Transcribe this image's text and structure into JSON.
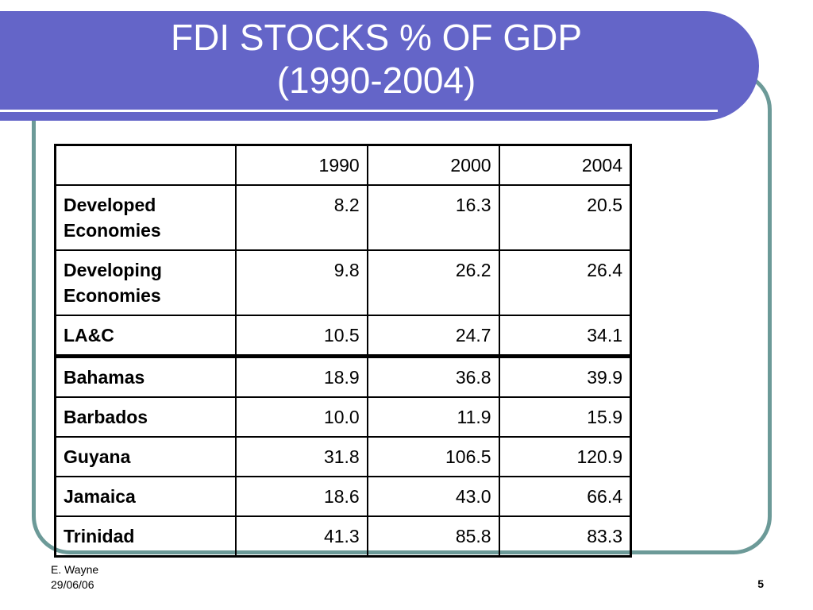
{
  "slide": {
    "title_line1": "FDI STOCKS % OF GDP",
    "title_line2": "(1990-2004)"
  },
  "table": {
    "header": [
      "",
      "1990",
      "2000",
      "2004"
    ],
    "rows": [
      {
        "label_line1": "Developed",
        "label_line2": "Economies",
        "v1990": "8.2",
        "v2000": "16.3",
        "v2004": "20.5"
      },
      {
        "label_line1": "Developing",
        "label_line2": "Economies",
        "v1990": "9.8",
        "v2000": "26.2",
        "v2004": "26.4"
      },
      {
        "label_line1": "LA&C",
        "label_line2": "",
        "v1990": "10.5",
        "v2000": "24.7",
        "v2004": "34.1"
      },
      {
        "label_line1": "Bahamas",
        "label_line2": "",
        "v1990": "18.9",
        "v2000": "36.8",
        "v2004": "39.9"
      },
      {
        "label_line1": "Barbados",
        "label_line2": "",
        "v1990": "10.0",
        "v2000": "11.9",
        "v2004": "15.9"
      },
      {
        "label_line1": "Guyana",
        "label_line2": "",
        "v1990": "31.8",
        "v2000": "106.5",
        "v2004": "120.9"
      },
      {
        "label_line1": "Jamaica",
        "label_line2": "",
        "v1990": "18.6",
        "v2000": "43.0",
        "v2004": "66.4"
      },
      {
        "label_line1": "Trinidad",
        "label_line2": "",
        "v1990": "41.3",
        "v2000": "85.8",
        "v2004": "83.3"
      }
    ]
  },
  "footer": {
    "author": "E. Wayne",
    "date": "29/06/06",
    "page_number": "5"
  },
  "colors": {
    "title_band": "#6465c8",
    "frame_border": "#6c9a98",
    "title_text": "#ffffff"
  }
}
